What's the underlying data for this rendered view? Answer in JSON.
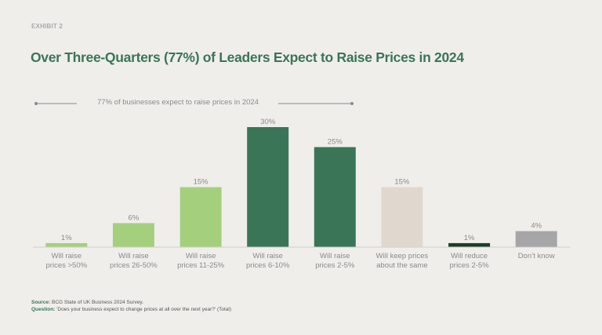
{
  "header": {
    "exhibit": "EXHIBIT 2",
    "title": "Over Three-Quarters (77%) of Leaders Expect to Raise Prices in 2024"
  },
  "callout": {
    "text": "77% of businesses  expect  to raise prices in 2024"
  },
  "chart_data": {
    "type": "bar",
    "title": "Over Three-Quarters (77%) of Leaders Expect to Raise Prices in 2024",
    "xlabel": "",
    "ylabel": "",
    "ylim": [
      0,
      30
    ],
    "grid": false,
    "categories": [
      [
        "Will raise",
        "prices >50%"
      ],
      [
        "Will raise",
        "prices 26-50%"
      ],
      [
        "Will raise",
        "prices 11-25%"
      ],
      [
        "Will raise",
        "prices 6-10%"
      ],
      [
        "Will raise",
        "prices 2-5%"
      ],
      [
        "Will keep prices",
        "about the same"
      ],
      [
        "Will reduce",
        "prices 2-5%"
      ],
      [
        "Don’t know"
      ]
    ],
    "values": [
      1,
      6,
      15,
      30,
      25,
      15,
      1,
      4
    ],
    "data_labels": [
      "1%",
      "6%",
      "15%",
      "30%",
      "25%",
      "15%",
      "1%",
      "4%"
    ],
    "colors": [
      "#a4d07e",
      "#a4d07e",
      "#a4d07e",
      "#3a7557",
      "#3a7557",
      "#e0d8cf",
      "#1f3d26",
      "#a6a6a8"
    ],
    "annotation": "77% of businesses expect to raise prices in 2024"
  },
  "footer": {
    "source_label": "Source:",
    "source_text": " BCG State of UK Business 2024 Survey.",
    "question_label": "Question:",
    "question_text": " 'Does your business expect to change prices at all over the next year?' (Total)"
  }
}
